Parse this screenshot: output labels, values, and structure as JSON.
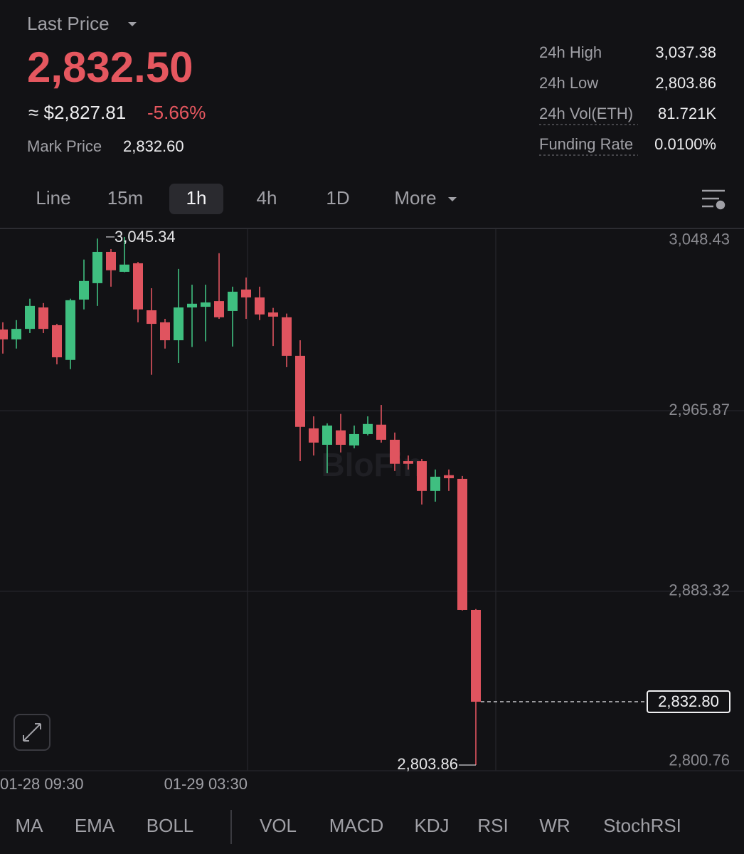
{
  "header": {
    "label": "Last Price",
    "last_price": "2,832.50",
    "approx_price": "≈ $2,827.81",
    "change": "-5.66%",
    "mark_label": "Mark Price",
    "mark_price": "2,832.60"
  },
  "stats": [
    {
      "label": "24h High",
      "value": "3,037.38"
    },
    {
      "label": "24h Low",
      "value": "2,803.86"
    },
    {
      "label": "24h Vol(ETH)",
      "value": "81.721K",
      "underline": true
    },
    {
      "label": "Funding Rate",
      "value": "0.0100%",
      "underline": true
    }
  ],
  "tabs": [
    "Line",
    "15m",
    "1h",
    "4h",
    "1D",
    "More"
  ],
  "selected_tab": 2,
  "chart_data": {
    "type": "candlestick",
    "watermark": "BloFin",
    "categories": [
      "01-28 09:30",
      null,
      null,
      null,
      null,
      null,
      null,
      null,
      null,
      null,
      null,
      null,
      null,
      null,
      null,
      null,
      null,
      null,
      "01-29 03:30",
      null,
      null,
      null,
      null,
      null,
      null,
      null,
      null,
      null,
      null,
      null,
      null,
      null,
      null,
      null,
      null,
      null
    ],
    "open": [
      3003.0,
      2998.5,
      3003.3,
      3013.1,
      3005.0,
      2989.1,
      3016.7,
      3024.2,
      3038.5,
      3029.4,
      3033.3,
      3011.8,
      3006.3,
      2998.1,
      3013.1,
      3013.4,
      3016.0,
      3011.5,
      3021.3,
      3017.7,
      3010.8,
      3008.6,
      2991.0,
      2957.8,
      2950.3,
      2956.9,
      2950.0,
      2955.2,
      2959.5,
      2952.6,
      2942.8,
      2942.8,
      2929.2,
      2936.4,
      2934.7,
      2874.8
    ],
    "high": [
      3006.3,
      3007.3,
      3017.1,
      3015.1,
      3005.6,
      3017.1,
      3035.0,
      3044.6,
      3039.8,
      3045.34,
      3033.9,
      3021.9,
      3007.9,
      3030.7,
      3023.5,
      3023.5,
      3037.9,
      3022.6,
      3026.8,
      3022.6,
      3012.9,
      3010.3,
      2998.1,
      2963.3,
      2960.1,
      2964.4,
      2959.1,
      2963.3,
      2968.5,
      2955.9,
      2945.4,
      2943.8,
      2939.0,
      2939.0,
      2936.0,
      2875.2
    ],
    "low": [
      2992.0,
      2994.3,
      3001.4,
      3001.4,
      2987.1,
      2984.9,
      3012.2,
      3013.8,
      3022.6,
      3029.2,
      3006.3,
      2982.3,
      2994.3,
      2987.7,
      2995.0,
      2997.6,
      3007.9,
      2995.2,
      3007.9,
      3007.3,
      2995.5,
      2985.8,
      2942.8,
      2945.4,
      2937.3,
      2946.8,
      2948.7,
      2954.6,
      2951.3,
      2938.3,
      2939.0,
      2923.0,
      2924.3,
      2929.2,
      2874.5,
      2803.86
    ],
    "close": [
      2998.5,
      3003.3,
      3013.8,
      3003.3,
      2990.3,
      3016.4,
      3025.2,
      3038.5,
      3030.1,
      3032.7,
      3012.2,
      3005.6,
      2998.1,
      3013.1,
      3014.8,
      3015.4,
      3008.6,
      3020.3,
      3017.7,
      3009.9,
      3008.9,
      2991.0,
      2958.5,
      2951.3,
      2959.1,
      2950.3,
      2955.2,
      2959.8,
      2952.6,
      2941.6,
      2941.6,
      2929.2,
      2935.7,
      2935.0,
      2874.8,
      2832.8
    ],
    "up_color": "#3fbf80",
    "down_color": "#e0545f",
    "ylim": [
      2800.6,
      3048.9
    ],
    "yticks": [
      {
        "value": 3048.43,
        "label": "3,048.43"
      },
      {
        "value": 2965.87,
        "label": "2,965.87"
      },
      {
        "value": 2883.32,
        "label": "2,883.32"
      },
      {
        "value": 2800.76,
        "label": "2,800.76"
      }
    ],
    "grid": true,
    "high_marker": {
      "value": 3045.34,
      "label": "3,045.34"
    },
    "low_marker": {
      "value": 2803.86,
      "label": "2,803.86"
    },
    "last_marker": {
      "value": 2832.8,
      "label": "2,832.80"
    }
  },
  "indicators": {
    "main": [
      "MA",
      "EMA",
      "BOLL"
    ],
    "sub": [
      "VOL",
      "MACD",
      "KDJ",
      "RSI",
      "WR",
      "StochRSI"
    ]
  }
}
